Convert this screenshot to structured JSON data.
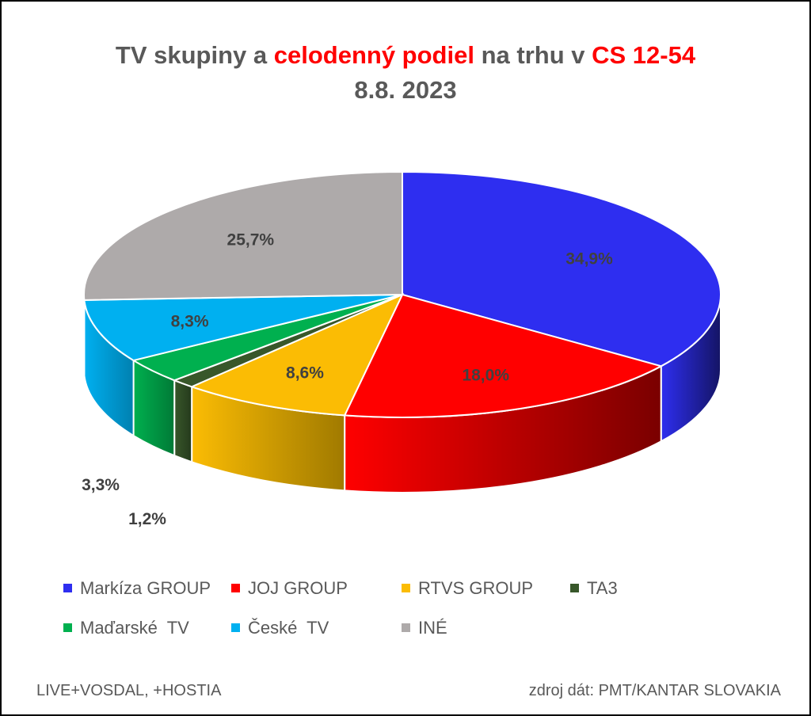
{
  "title_parts": {
    "p1": "TV skupiny a ",
    "p2": "celodenný podiel",
    "p3": " na trhu v ",
    "p4": "CS 12-54"
  },
  "subtitle": "8.8. 2023",
  "chart_data": {
    "type": "pie",
    "title": "TV skupiny a celodenný podiel na trhu v CS 12-54",
    "subtitle": "8.8. 2023",
    "style": "3d",
    "slices": [
      {
        "name": "Markíza GROUP",
        "value": 34.9,
        "label": "34,9%",
        "color": "#2e2ef0",
        "side_color": "#141464"
      },
      {
        "name": "JOJ GROUP",
        "value": 18.0,
        "label": "18,0%",
        "color": "#ff0000",
        "side_color": "#7a0000"
      },
      {
        "name": "RTVS GROUP",
        "value": 8.6,
        "label": "8,6%",
        "color": "#fbbc04",
        "side_color": "#a07a00"
      },
      {
        "name": "TA3",
        "value": 1.2,
        "label": "1,2%",
        "color": "#38572a",
        "side_color": "#253a1c"
      },
      {
        "name": "Maďarské  TV",
        "value": 3.3,
        "label": "3,3%",
        "color": "#00b04f",
        "side_color": "#007a36"
      },
      {
        "name": "České  TV",
        "value": 8.3,
        "label": "8,3%",
        "color": "#00b0f0",
        "side_color": "#0080b0"
      },
      {
        "name": "INÉ",
        "value": 25.7,
        "label": "25,7%",
        "color": "#aeaaaa",
        "side_color": "#7a7777"
      }
    ],
    "legend_position": "bottom"
  },
  "footer": {
    "left": "LIVE+VOSDAL, +HOSTIA",
    "right": "zdroj dát: PMT/KANTAR SLOVAKIA"
  }
}
